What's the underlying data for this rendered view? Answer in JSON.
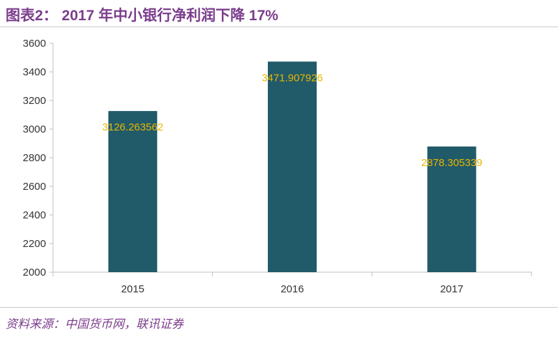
{
  "title": "图表2： 2017 年中小银行净利润下降 17%",
  "source": "资料来源：中国货币网，联讯证券",
  "colors": {
    "title": "#7b3d8c",
    "bar": "#215a69",
    "label": "#e8b600",
    "axis": "#bfbfbf"
  },
  "chart_data": {
    "type": "bar",
    "categories": [
      "2015",
      "2016",
      "2017"
    ],
    "values": [
      3126.263562,
      3471.907926,
      2878.305339
    ],
    "data_labels": [
      "3126.263562",
      "3471.907926",
      "2878.305339"
    ],
    "ylim": [
      2000,
      3600
    ],
    "yticks": [
      2000,
      2200,
      2400,
      2600,
      2800,
      3000,
      3200,
      3400,
      3600
    ],
    "grid": false
  }
}
